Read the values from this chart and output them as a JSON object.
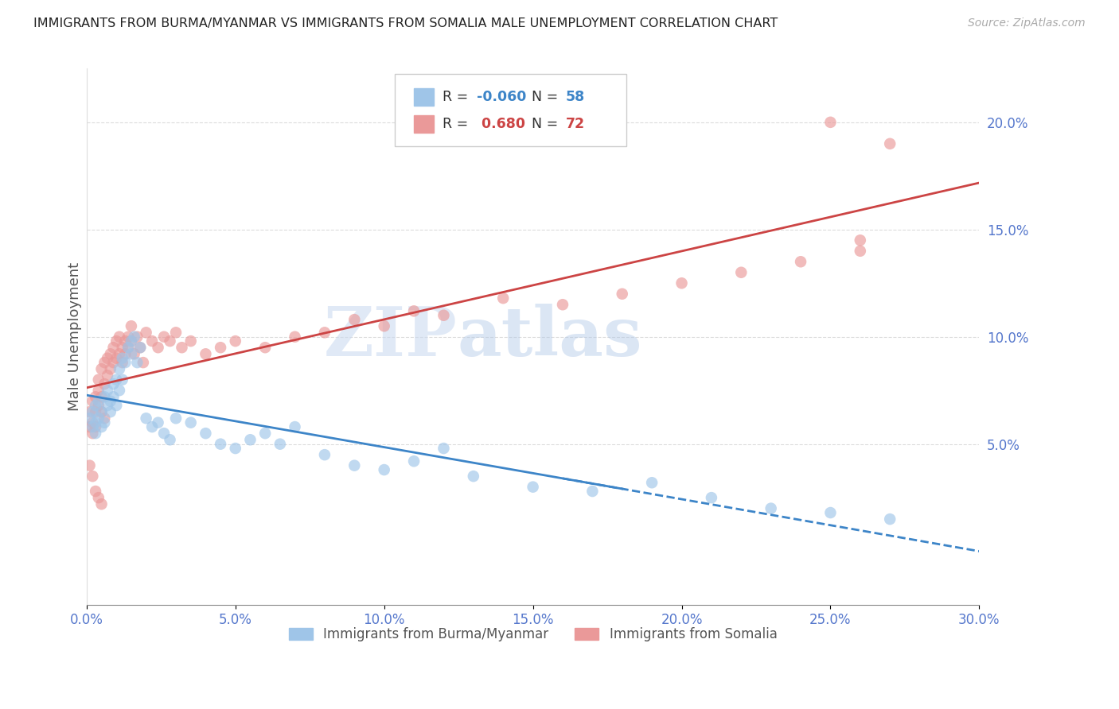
{
  "title": "IMMIGRANTS FROM BURMA/MYANMAR VS IMMIGRANTS FROM SOMALIA MALE UNEMPLOYMENT CORRELATION CHART",
  "source": "Source: ZipAtlas.com",
  "ylabel": "Male Unemployment",
  "right_yticks": [
    0.05,
    0.1,
    0.15,
    0.2
  ],
  "right_yticklabels": [
    "5.0%",
    "10.0%",
    "15.0%",
    "20.0%"
  ],
  "xlim": [
    0.0,
    0.3
  ],
  "ylim": [
    -0.025,
    0.225
  ],
  "watermark_zip": "ZIP",
  "watermark_atlas": "atlas",
  "legend_burma_r": "-0.060",
  "legend_burma_n": "58",
  "legend_somalia_r": "0.680",
  "legend_somalia_n": "72",
  "burma_color": "#9fc5e8",
  "somalia_color": "#ea9999",
  "burma_line_color": "#3d85c8",
  "somalia_line_color": "#cc4444",
  "title_color": "#222222",
  "axis_label_color": "#555555",
  "right_axis_color": "#5577cc",
  "grid_color": "#cccccc",
  "scatter_alpha": 0.65,
  "scatter_size": 110,
  "burma_x": [
    0.001,
    0.002,
    0.002,
    0.003,
    0.003,
    0.003,
    0.004,
    0.004,
    0.005,
    0.005,
    0.006,
    0.006,
    0.007,
    0.007,
    0.008,
    0.008,
    0.009,
    0.009,
    0.01,
    0.01,
    0.011,
    0.011,
    0.012,
    0.012,
    0.013,
    0.014,
    0.015,
    0.015,
    0.016,
    0.017,
    0.018,
    0.02,
    0.022,
    0.024,
    0.026,
    0.028,
    0.03,
    0.035,
    0.04,
    0.045,
    0.05,
    0.055,
    0.06,
    0.065,
    0.07,
    0.08,
    0.09,
    0.1,
    0.11,
    0.12,
    0.13,
    0.15,
    0.17,
    0.19,
    0.21,
    0.23,
    0.25,
    0.27
  ],
  "burma_y": [
    0.062,
    0.058,
    0.065,
    0.055,
    0.06,
    0.068,
    0.062,
    0.07,
    0.058,
    0.065,
    0.072,
    0.06,
    0.068,
    0.075,
    0.07,
    0.065,
    0.078,
    0.072,
    0.08,
    0.068,
    0.085,
    0.075,
    0.08,
    0.09,
    0.088,
    0.095,
    0.092,
    0.098,
    0.1,
    0.088,
    0.095,
    0.062,
    0.058,
    0.06,
    0.055,
    0.052,
    0.062,
    0.06,
    0.055,
    0.05,
    0.048,
    0.052,
    0.055,
    0.05,
    0.058,
    0.045,
    0.04,
    0.038,
    0.042,
    0.048,
    0.035,
    0.03,
    0.028,
    0.032,
    0.025,
    0.02,
    0.018,
    0.015
  ],
  "somalia_x": [
    0.001,
    0.001,
    0.002,
    0.002,
    0.002,
    0.003,
    0.003,
    0.003,
    0.004,
    0.004,
    0.004,
    0.005,
    0.005,
    0.005,
    0.006,
    0.006,
    0.006,
    0.007,
    0.007,
    0.008,
    0.008,
    0.009,
    0.009,
    0.01,
    0.01,
    0.011,
    0.011,
    0.012,
    0.012,
    0.013,
    0.013,
    0.014,
    0.014,
    0.015,
    0.015,
    0.016,
    0.017,
    0.018,
    0.019,
    0.02,
    0.022,
    0.024,
    0.026,
    0.028,
    0.03,
    0.032,
    0.035,
    0.04,
    0.045,
    0.05,
    0.06,
    0.07,
    0.08,
    0.09,
    0.1,
    0.11,
    0.12,
    0.14,
    0.16,
    0.18,
    0.2,
    0.22,
    0.24,
    0.26,
    0.001,
    0.002,
    0.003,
    0.004,
    0.005,
    0.25,
    0.26,
    0.27
  ],
  "somalia_y": [
    0.058,
    0.065,
    0.06,
    0.055,
    0.07,
    0.065,
    0.072,
    0.058,
    0.075,
    0.068,
    0.08,
    0.072,
    0.085,
    0.065,
    0.078,
    0.088,
    0.062,
    0.082,
    0.09,
    0.085,
    0.092,
    0.088,
    0.095,
    0.09,
    0.098,
    0.092,
    0.1,
    0.095,
    0.088,
    0.098,
    0.092,
    0.1,
    0.095,
    0.098,
    0.105,
    0.092,
    0.1,
    0.095,
    0.088,
    0.102,
    0.098,
    0.095,
    0.1,
    0.098,
    0.102,
    0.095,
    0.098,
    0.092,
    0.095,
    0.098,
    0.095,
    0.1,
    0.102,
    0.108,
    0.105,
    0.112,
    0.11,
    0.118,
    0.115,
    0.12,
    0.125,
    0.13,
    0.135,
    0.14,
    0.04,
    0.035,
    0.028,
    0.025,
    0.022,
    0.2,
    0.145,
    0.19
  ]
}
